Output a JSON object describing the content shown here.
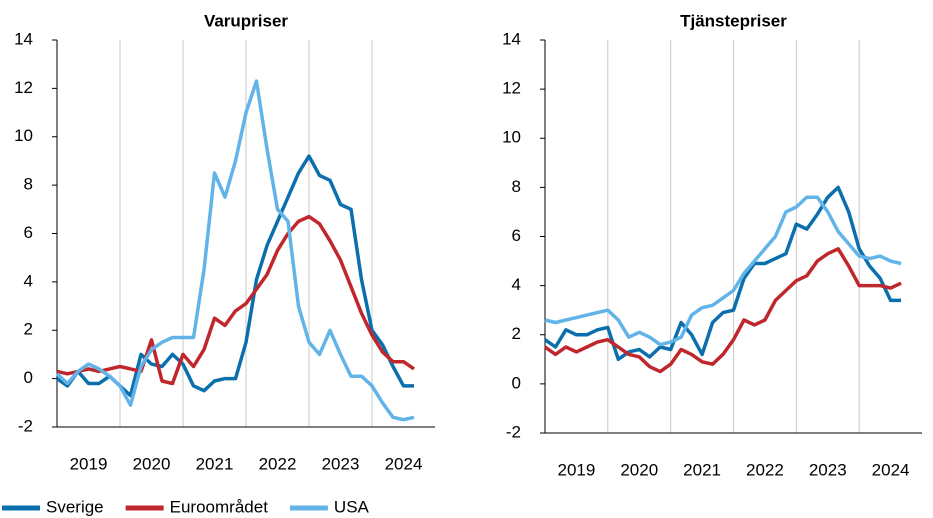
{
  "chart_data": [
    {
      "type": "line",
      "title": "Varupriser",
      "categories": [
        null,
        null,
        null,
        "2019",
        null,
        null,
        null,
        null,
        null,
        "2020",
        null,
        null,
        null,
        null,
        null,
        "2021",
        null,
        null,
        null,
        null,
        null,
        "2022",
        null,
        null,
        null,
        null,
        null,
        "2023",
        null,
        null,
        null,
        null,
        null,
        "2024",
        null
      ],
      "ylim": [
        -2,
        14
      ],
      "yticks": [
        -2,
        0,
        2,
        4,
        6,
        8,
        10,
        12,
        14
      ],
      "grid": true,
      "series": [
        {
          "name": "Sverige",
          "color": "#0b6fad",
          "values": [
            0,
            -0.3,
            0.3,
            -0.2,
            -0.2,
            0.1,
            -0.3,
            -0.7,
            1.0,
            0.6,
            0.5,
            1.0,
            0.6,
            -0.3,
            -0.5,
            -0.1,
            0,
            0,
            1.5,
            4.1,
            5.5,
            6.5,
            7.5,
            8.5,
            9.2,
            8.4,
            8.2,
            7.2,
            7.0,
            4.1,
            2.0,
            1.4,
            0.5,
            -0.3,
            -0.3
          ]
        },
        {
          "name": "Euroområdet",
          "color": "#c0272d",
          "values": [
            0.3,
            0.2,
            0.3,
            0.4,
            0.3,
            0.4,
            0.5,
            0.4,
            0.3,
            1.6,
            -0.1,
            -0.2,
            1.0,
            0.5,
            1.2,
            2.5,
            2.2,
            2.8,
            3.1,
            3.7,
            4.3,
            5.3,
            6.0,
            6.5,
            6.7,
            6.4,
            5.7,
            4.9,
            3.8,
            2.7,
            1.8,
            1.1,
            0.7,
            0.7,
            0.4
          ]
        },
        {
          "name": "USA",
          "color": "#62b4e8",
          "values": [
            0.2,
            -0.2,
            0.3,
            0.6,
            0.4,
            0.1,
            -0.3,
            -1.1,
            0.5,
            1.2,
            1.5,
            1.7,
            1.7,
            1.7,
            4.5,
            8.5,
            7.5,
            9.0,
            11.0,
            12.3,
            9.5,
            7.0,
            6.5,
            3.0,
            1.5,
            1.0,
            2.0,
            1.0,
            0.1,
            0.1,
            -0.3,
            -1.0,
            -1.6,
            -1.7,
            -1.6
          ]
        }
      ]
    },
    {
      "type": "line",
      "title": "Tjänstepriser",
      "categories": [
        null,
        null,
        null,
        "2019",
        null,
        null,
        null,
        null,
        null,
        "2020",
        null,
        null,
        null,
        null,
        null,
        "2021",
        null,
        null,
        null,
        null,
        null,
        "2022",
        null,
        null,
        null,
        null,
        null,
        "2023",
        null,
        null,
        null,
        null,
        null,
        "2024",
        null
      ],
      "ylim": [
        -2,
        14
      ],
      "yticks": [
        -2,
        0,
        2,
        4,
        6,
        8,
        10,
        12,
        14
      ],
      "grid": true,
      "series": [
        {
          "name": "Sverige",
          "color": "#0b6fad",
          "values": [
            1.8,
            1.5,
            2.2,
            2.0,
            2.0,
            2.2,
            2.3,
            1.0,
            1.3,
            1.4,
            1.1,
            1.5,
            1.4,
            2.5,
            2.0,
            1.2,
            2.5,
            2.9,
            3.0,
            4.3,
            4.9,
            4.9,
            5.1,
            5.3,
            6.5,
            6.3,
            6.9,
            7.6,
            8.0,
            7.0,
            5.5,
            4.8,
            4.3,
            3.4,
            3.4
          ]
        },
        {
          "name": "Euroområdet",
          "color": "#c0272d",
          "values": [
            1.5,
            1.2,
            1.5,
            1.3,
            1.5,
            1.7,
            1.8,
            1.5,
            1.2,
            1.1,
            0.7,
            0.5,
            0.8,
            1.4,
            1.2,
            0.9,
            0.8,
            1.2,
            1.8,
            2.6,
            2.4,
            2.6,
            3.4,
            3.8,
            4.2,
            4.4,
            5.0,
            5.3,
            5.5,
            4.8,
            4.0,
            4.0,
            4.0,
            3.9,
            4.1
          ]
        },
        {
          "name": "USA",
          "color": "#62b4e8",
          "values": [
            2.6,
            2.5,
            2.6,
            2.7,
            2.8,
            2.9,
            3.0,
            2.6,
            1.9,
            2.1,
            1.9,
            1.6,
            1.7,
            1.9,
            2.8,
            3.1,
            3.2,
            3.5,
            3.8,
            4.5,
            5.0,
            5.5,
            6.0,
            7.0,
            7.2,
            7.6,
            7.6,
            7.0,
            6.2,
            5.7,
            5.2,
            5.1,
            5.2,
            5.0,
            4.9
          ]
        }
      ]
    }
  ]
}
